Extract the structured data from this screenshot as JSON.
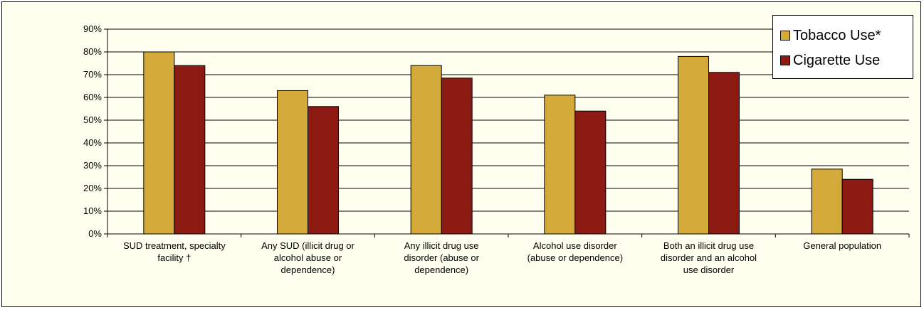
{
  "chart_data": {
    "type": "bar",
    "categories": [
      [
        "SUD  treatment, specialty",
        "facility †"
      ],
      [
        "Any SUD (illicit drug or",
        "alcohol abuse or",
        "dependence)"
      ],
      [
        "Any illicit drug use",
        "disorder (abuse or",
        "dependence)"
      ],
      [
        "Alcohol use disorder",
        "(abuse or dependence)"
      ],
      [
        "Both an illicit drug use",
        "disorder and an alcohol",
        "use disorder"
      ],
      [
        "General population"
      ]
    ],
    "series": [
      {
        "name": "Tobacco Use*",
        "color": "#D4AA3A",
        "values": [
          80,
          63,
          74,
          61,
          78,
          28.5
        ]
      },
      {
        "name": "Cigarette Use",
        "color": "#8B1A12",
        "values": [
          74,
          56,
          68.5,
          54,
          71,
          24
        ]
      }
    ],
    "ylim": [
      0,
      90
    ],
    "yticks": [
      "0%",
      "10%",
      "20%",
      "30%",
      "40%",
      "50%",
      "60%",
      "70%",
      "80%",
      "90%"
    ],
    "grid": true,
    "legend_position": "top-right",
    "title": "",
    "xlabel": "",
    "ylabel": ""
  }
}
